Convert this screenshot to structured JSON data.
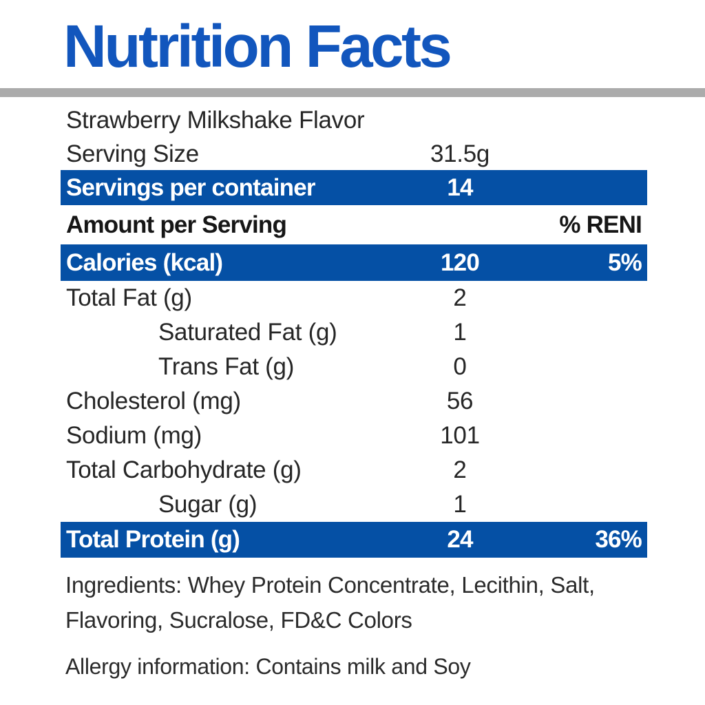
{
  "title": "Nutrition Facts",
  "rows": [
    {
      "label": "Strawberry Milkshake Flavor",
      "value": "",
      "percent": ""
    },
    {
      "label": "Serving Size",
      "value": "31.5g",
      "percent": ""
    },
    {
      "label": "Servings per container",
      "value": "14",
      "percent": ""
    },
    {
      "label": "Amount per Serving",
      "value": "",
      "percent": "% RENI"
    },
    {
      "label": "Calories (kcal)",
      "value": "120",
      "percent": "5%"
    },
    {
      "label": "Total Fat (g)",
      "value": "2",
      "percent": ""
    },
    {
      "label": "Saturated Fat (g)",
      "value": "1",
      "percent": ""
    },
    {
      "label": "Trans Fat (g)",
      "value": "0",
      "percent": ""
    },
    {
      "label": "Cholesterol (mg)",
      "value": "56",
      "percent": ""
    },
    {
      "label": "Sodium (mg)",
      "value": "101",
      "percent": ""
    },
    {
      "label": "Total Carbohydrate (g)",
      "value": "2",
      "percent": ""
    },
    {
      "label": "Sugar (g)",
      "value": "1",
      "percent": ""
    },
    {
      "label": "Total Protein (g)",
      "value": "24",
      "percent": "36%"
    }
  ],
  "ingredients": "Ingredients: Whey Protein Concentrate, Lecithin, Salt, Flavoring, Sucralose, FD&C Colors",
  "allergy": "Allergy information: Contains milk and Soy",
  "colors": {
    "title_blue": "#1256BD",
    "bar_blue": "#0550A5",
    "divider_gray": "#ABABAB",
    "text_dark": "#262626"
  }
}
